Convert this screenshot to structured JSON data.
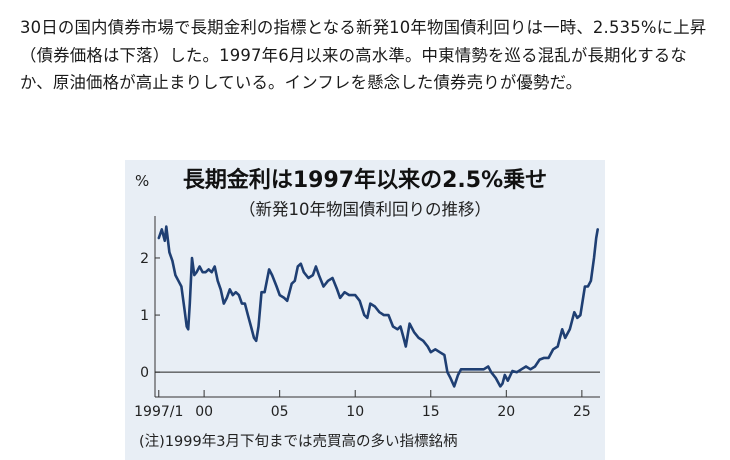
{
  "article": {
    "paragraph": "30日の国内債券市場で長期金利の指標となる新発10年物国債利回りは一時、2.535%に上昇（債券価格は下落）した。1997年6月以来の高水準。中東情勢を巡る混乱が長期化するなか、原油価格が高止まりしている。インフレを懸念した債券売りが優勢だ。"
  },
  "colors": {
    "chart_background": "#e8eef5",
    "line": "#1f3f73",
    "zero_line": "#222222"
  },
  "chart_data": {
    "type": "line",
    "title": "長期金利は1997年以来の2.5%乗せ",
    "subtitle": "（新発10年物国債利回りの推移）",
    "ylabel": "%",
    "xlabel": "",
    "note": "(注)1999年3月下旬までは売買高の多い指標銘柄",
    "xlim": [
      1996.75,
      2026.2
    ],
    "ylim": [
      -0.4,
      2.7
    ],
    "grid": false,
    "legend": "none",
    "y_ticks": [
      {
        "value": 0,
        "label": "0"
      },
      {
        "value": 1,
        "label": "1"
      },
      {
        "value": 2,
        "label": "2"
      }
    ],
    "x_ticks": [
      {
        "value": 1997,
        "label": "1997/1"
      },
      {
        "value": 2000,
        "label": "00"
      },
      {
        "value": 2005,
        "label": "05"
      },
      {
        "value": 2010,
        "label": "10"
      },
      {
        "value": 2015,
        "label": "15"
      },
      {
        "value": 2020,
        "label": "20"
      },
      {
        "value": 2025,
        "label": "25"
      }
    ],
    "series": [
      {
        "x": [
          1997.0,
          1997.2,
          1997.4,
          1997.5,
          1997.7,
          1997.9,
          1998.1,
          1998.3,
          1998.5,
          1998.7,
          1998.85,
          1998.95,
          1999.05,
          1999.2,
          1999.35,
          1999.5,
          1999.7,
          1999.9,
          2000.1,
          2000.3,
          2000.5,
          2000.7,
          2000.9,
          2001.1,
          2001.3,
          2001.5,
          2001.7,
          2001.9,
          2002.1,
          2002.3,
          2002.5,
          2002.7,
          2002.9,
          2003.1,
          2003.3,
          2003.45,
          2003.6,
          2003.8,
          2004.0,
          2004.3,
          2004.5,
          2004.8,
          2005.0,
          2005.3,
          2005.5,
          2005.8,
          2006.0,
          2006.2,
          2006.4,
          2006.6,
          2006.9,
          2007.2,
          2007.4,
          2007.6,
          2007.9,
          2008.2,
          2008.5,
          2008.8,
          2009.0,
          2009.3,
          2009.6,
          2010.0,
          2010.3,
          2010.6,
          2010.8,
          2011.0,
          2011.3,
          2011.6,
          2011.9,
          2012.2,
          2012.5,
          2012.8,
          2013.0,
          2013.2,
          2013.35,
          2013.6,
          2013.9,
          2014.2,
          2014.5,
          2014.8,
          2015.0,
          2015.3,
          2015.6,
          2015.9,
          2016.1,
          2016.3,
          2016.55,
          2016.8,
          2017.0,
          2017.3,
          2017.6,
          2017.9,
          2018.2,
          2018.5,
          2018.8,
          2019.0,
          2019.3,
          2019.6,
          2019.75,
          2019.9,
          2020.1,
          2020.4,
          2020.7,
          2021.0,
          2021.3,
          2021.6,
          2021.9,
          2022.2,
          2022.5,
          2022.8,
          2023.1,
          2023.4,
          2023.7,
          2023.9,
          2024.2,
          2024.5,
          2024.7,
          2024.9,
          2025.2,
          2025.4,
          2025.6,
          2025.8,
          2025.95,
          2026.05
        ],
        "y": [
          2.35,
          2.5,
          2.3,
          2.55,
          2.1,
          1.95,
          1.7,
          1.6,
          1.5,
          1.1,
          0.8,
          0.75,
          1.2,
          2.0,
          1.7,
          1.75,
          1.85,
          1.75,
          1.75,
          1.8,
          1.75,
          1.85,
          1.6,
          1.45,
          1.2,
          1.3,
          1.45,
          1.35,
          1.4,
          1.35,
          1.2,
          1.2,
          1.0,
          0.8,
          0.6,
          0.55,
          0.8,
          1.4,
          1.4,
          1.8,
          1.7,
          1.5,
          1.35,
          1.3,
          1.25,
          1.55,
          1.6,
          1.85,
          1.9,
          1.75,
          1.65,
          1.7,
          1.85,
          1.7,
          1.5,
          1.6,
          1.65,
          1.45,
          1.3,
          1.4,
          1.35,
          1.35,
          1.25,
          1.0,
          0.95,
          1.2,
          1.15,
          1.05,
          1.0,
          1.0,
          0.8,
          0.75,
          0.8,
          0.6,
          0.45,
          0.85,
          0.7,
          0.6,
          0.55,
          0.45,
          0.35,
          0.4,
          0.35,
          0.3,
          0.0,
          -0.1,
          -0.25,
          -0.05,
          0.05,
          0.05,
          0.05,
          0.05,
          0.05,
          0.05,
          0.1,
          0.0,
          -0.1,
          -0.25,
          -0.2,
          -0.05,
          -0.15,
          0.02,
          0.0,
          0.05,
          0.1,
          0.05,
          0.1,
          0.22,
          0.25,
          0.25,
          0.4,
          0.45,
          0.75,
          0.6,
          0.75,
          1.05,
          0.95,
          1.0,
          1.5,
          1.5,
          1.6,
          2.0,
          2.35,
          2.5
        ]
      }
    ]
  }
}
